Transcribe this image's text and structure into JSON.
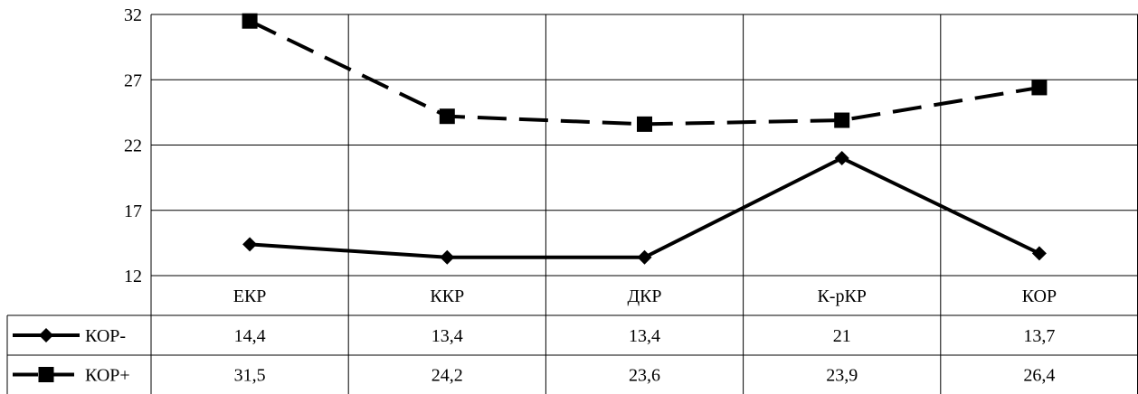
{
  "chart_data": {
    "type": "line",
    "categories": [
      "ЕКР",
      "ККР",
      "ДКР",
      "К-рКР",
      "КОР"
    ],
    "series": [
      {
        "name": "КОР-",
        "values": [
          14.4,
          13.4,
          13.4,
          21,
          13.7
        ],
        "value_labels": [
          "14,4",
          "13,4",
          "13,4",
          "21",
          "13,7"
        ],
        "marker": "diamond",
        "line_style": "solid",
        "color": "#000000"
      },
      {
        "name": "КОР+",
        "values": [
          31.5,
          24.2,
          23.6,
          23.9,
          26.4
        ],
        "value_labels": [
          "31,5",
          "24,2",
          "23,6",
          "23,9",
          "26,4"
        ],
        "marker": "square",
        "line_style": "dashed",
        "color": "#000000"
      }
    ],
    "y_ticks": [
      "12",
      "17",
      "22",
      "27",
      "32"
    ],
    "ylim": [
      12,
      32
    ],
    "grid": true,
    "legend": "data-table-left"
  }
}
